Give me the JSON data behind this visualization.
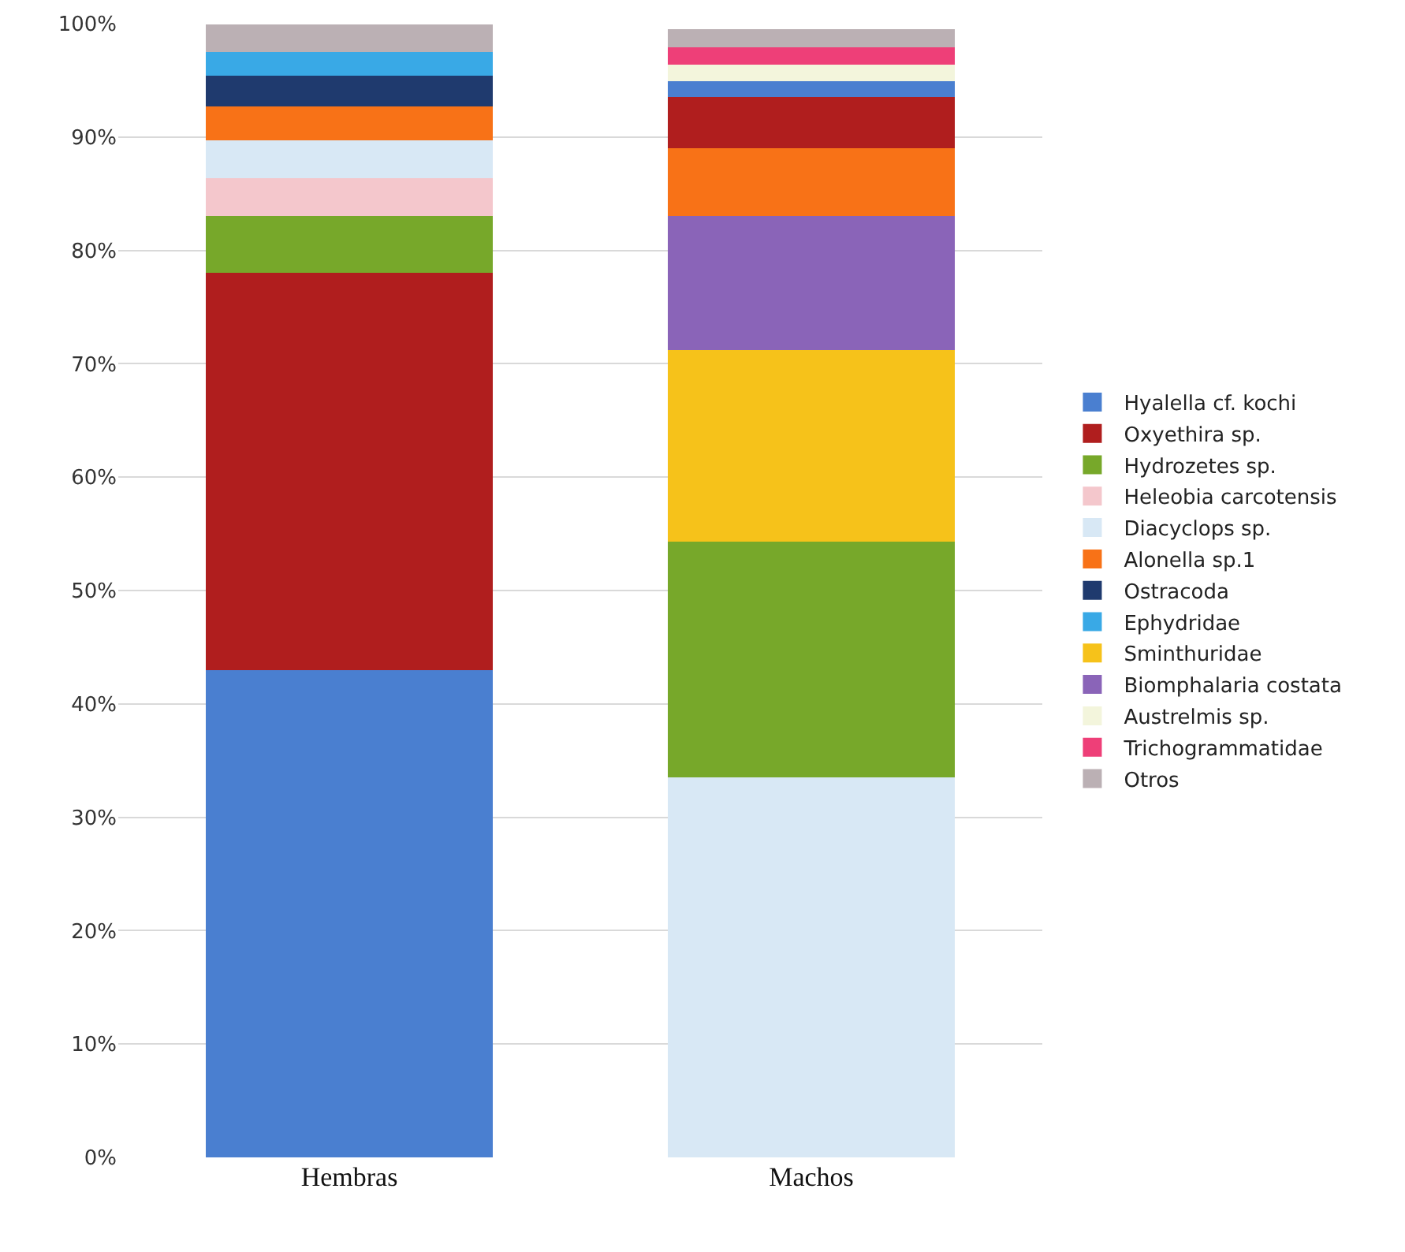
{
  "chart_data": {
    "type": "bar",
    "stacked": true,
    "categories": [
      "Hembras",
      "Machos"
    ],
    "series": [
      {
        "name": "Hyalella cf. kochi",
        "color": "#4a7fd0",
        "values": [
          43,
          null
        ]
      },
      {
        "color": "#d8e8f5",
        "values": [
          null,
          33.5
        ]
      },
      {
        "name": "Oxyethira sp.",
        "color": "#b01e1e",
        "values": [
          35,
          null
        ]
      },
      {
        "name": "Hydrozetes sp.",
        "color": "#77a82a",
        "values": [
          5,
          20.8
        ]
      },
      {
        "name": "Heleobia carcotensis",
        "color": "#f4c7cc",
        "values": [
          3.4,
          null
        ]
      },
      {
        "name": "Diacyclops sp.",
        "color": "#d8e8f5",
        "values": [
          3.3,
          null
        ]
      },
      {
        "name": "Alonella sp.1",
        "color": "#f87217",
        "values": [
          3,
          null
        ]
      },
      {
        "name": "Ostracoda",
        "color": "#1f3a6e",
        "values": [
          2.7,
          null
        ]
      },
      {
        "name": "Ephydridae",
        "color": "#39a9e6",
        "values": [
          2.1,
          null
        ]
      },
      {
        "name": "Sminthuridae",
        "color": "#f6c21a",
        "values": [
          null,
          16.9
        ]
      },
      {
        "name": "Biomphalaria costata",
        "color": "#8a64b8",
        "values": [
          null,
          11.8
        ]
      },
      {
        "color": "#f87217",
        "values": [
          null,
          6
        ]
      },
      {
        "color": "#b01e1e",
        "values": [
          null,
          4.5
        ]
      },
      {
        "color": "#4a7fd0",
        "values": [
          null,
          1.4
        ]
      },
      {
        "name": "Austrelmis sp.",
        "color": "#f3f5dc",
        "values": [
          null,
          1.5
        ]
      },
      {
        "name": "Trichogrammatidae",
        "color": "#ee3f78",
        "values": [
          null,
          1.5
        ]
      },
      {
        "name": "Otros",
        "color": "#bbb0b4",
        "values": [
          2.4,
          1.6
        ]
      }
    ],
    "ylim": [
      0,
      100
    ],
    "yticks": [
      {
        "value": 0,
        "label": "0%"
      },
      {
        "value": 10,
        "label": "10%"
      },
      {
        "value": 20,
        "label": "20%"
      },
      {
        "value": 30,
        "label": "30%"
      },
      {
        "value": 40,
        "label": "40%"
      },
      {
        "value": 50,
        "label": "50%"
      },
      {
        "value": 60,
        "label": "60%"
      },
      {
        "value": 70,
        "label": "70%"
      },
      {
        "value": 80,
        "label": "80%"
      },
      {
        "value": 90,
        "label": "90%"
      },
      {
        "value": 100,
        "label": "100%"
      }
    ],
    "grid": "y",
    "legend": "right"
  }
}
